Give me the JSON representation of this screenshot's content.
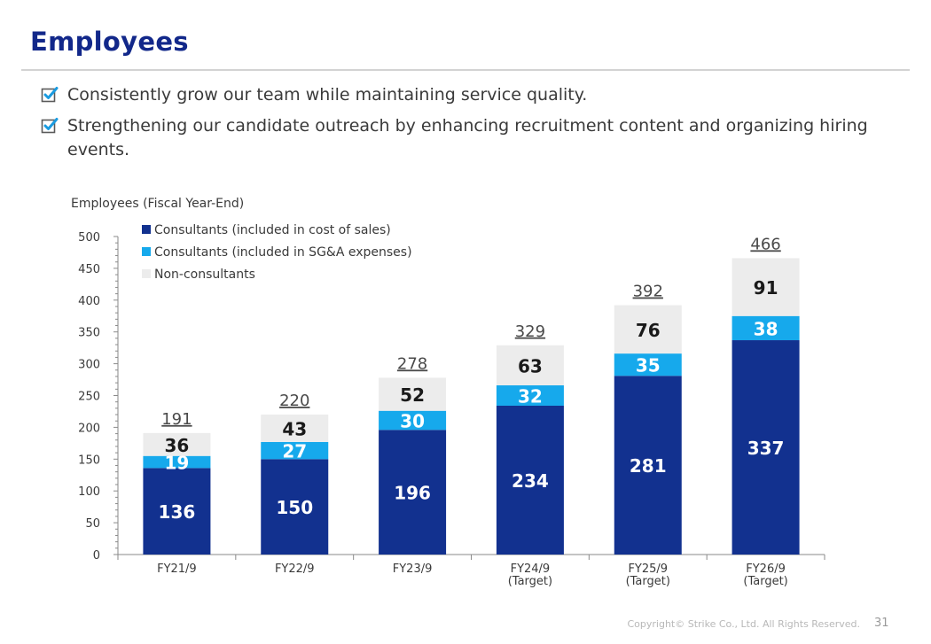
{
  "slide": {
    "title": "Employees",
    "bullets": [
      "Consistently grow our team while maintaining service quality.",
      "Strengthening our candidate outreach by enhancing recruitment content and organizing hiring events."
    ],
    "footer": "Copyright© Strike Co., Ltd. All Rights Reserved.",
    "page_number": "31"
  },
  "colors": {
    "title": "#12288a",
    "consultants_cos": "#12318f",
    "consultants_sga": "#16a9ec",
    "non_consultants": "#ececec",
    "check": "#1a9be0"
  },
  "chart_data": {
    "type": "bar",
    "stacked": true,
    "title": "",
    "ylabel": "Employees (Fiscal Year-End)",
    "xlabel": "",
    "ylim": [
      0,
      500
    ],
    "yticks": [
      0,
      50,
      100,
      150,
      200,
      250,
      300,
      350,
      400,
      450,
      500
    ],
    "categories": [
      [
        "FY21/9"
      ],
      [
        "FY22/9"
      ],
      [
        "FY23/9"
      ],
      [
        "FY24/9",
        "(Target)"
      ],
      [
        "FY25/9",
        "(Target)"
      ],
      [
        "FY26/9",
        "(Target)"
      ]
    ],
    "series": [
      {
        "name": "Consultants (included in cost of sales)",
        "color": "#12318f",
        "values": [
          136,
          150,
          196,
          234,
          281,
          337
        ]
      },
      {
        "name": "Consultants (included in SG&A expenses)",
        "color": "#16a9ec",
        "values": [
          19,
          27,
          30,
          32,
          35,
          38
        ]
      },
      {
        "name": "Non-consultants",
        "color": "#ececec",
        "values": [
          36,
          43,
          52,
          63,
          76,
          91
        ]
      }
    ],
    "totals": [
      191,
      220,
      278,
      329,
      392,
      466
    ],
    "legend": "top-left",
    "grid": false
  }
}
